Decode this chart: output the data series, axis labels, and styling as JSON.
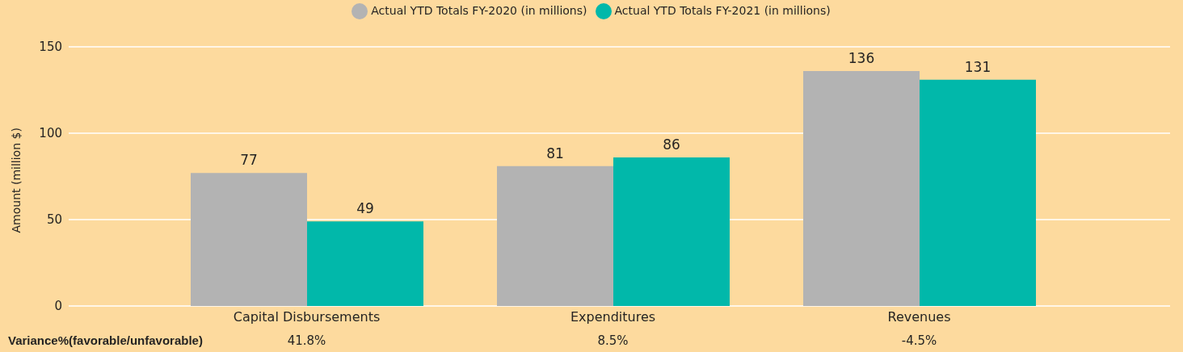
{
  "chart_data": {
    "type": "bar",
    "ylabel": "Amount (million $)",
    "categories": [
      "Capital Disbursements",
      "Expenditures",
      "Revenues"
    ],
    "series": [
      {
        "name": "Actual YTD Totals FY-2020 (in millions)",
        "color": "#b3b3b3",
        "values": [
          77,
          81,
          136
        ]
      },
      {
        "name": "Actual YTD Totals FY-2021 (in millions)",
        "color": "#01b8aa",
        "values": [
          49,
          86,
          131
        ]
      }
    ],
    "ylim": [
      0,
      150
    ],
    "yticks": [
      0,
      50,
      100,
      150
    ],
    "grid": "y",
    "legend": "top",
    "data_labels": true,
    "annotations": [
      "Variance%(favorable/unfavorable)",
      "41.8%",
      "8.5%",
      "-4.5%"
    ]
  }
}
